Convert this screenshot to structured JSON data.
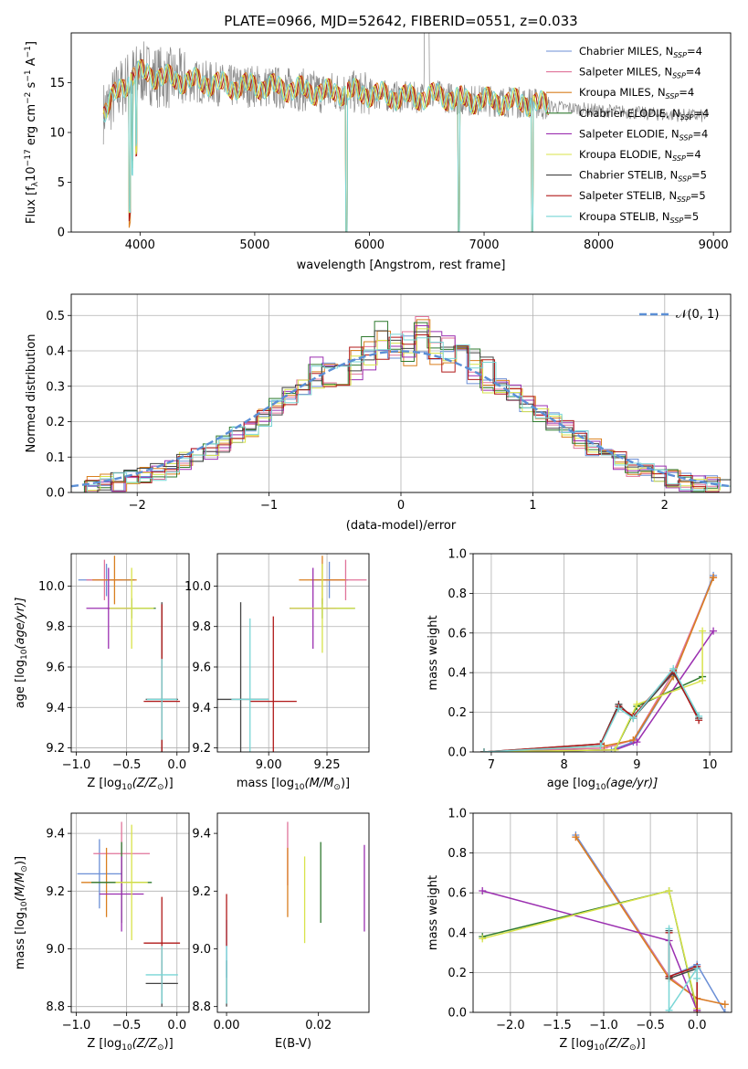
{
  "colors": {
    "chabrier_miles": "#6b8fd6",
    "salpeter_miles": "#e0739a",
    "kroupa_miles": "#d97f1f",
    "chabrier_elodie": "#2f7a2f",
    "salpeter_elodie": "#9b2fb0",
    "kroupa_elodie": "#d8e34a",
    "chabrier_stelib": "#444444",
    "salpeter_stelib": "#b01818",
    "kroupa_stelib": "#79d6d6",
    "normal": "#5b8fd6"
  },
  "legend_labels": [
    "Chabrier MILES, N",
    "Salpeter MILES, N",
    "Kroupa MILES, N",
    "Chabrier ELODIE, N",
    "Salpeter ELODIE, N",
    "Kroupa ELODIE, N",
    "Chabrier STELIB, N",
    "Salpeter STELIB, N",
    "Kroupa STELIB, N"
  ],
  "legend_sub": "SSP",
  "legend_counts": [
    "=4",
    "=4",
    "=4",
    "=4",
    "=4",
    "=4",
    "=5",
    "=5",
    "=5"
  ],
  "chart_data": [
    {
      "id": "spectrum",
      "type": "line",
      "title": "PLATE=0966, MJD=52642, FIBERID=0551, z=0.033",
      "xlabel": "wavelength [Angstrom, rest frame]",
      "ylabel": "Flux [f",
      "ylabel_parts": [
        "Flux [f",
        "λ",
        "10",
        "−17",
        " erg cm",
        "−2",
        " s",
        "−1",
        " A",
        "−1",
        "]"
      ],
      "xlim": [
        3400,
        9150
      ],
      "ylim": [
        0,
        20
      ],
      "xticks": [
        "4000",
        "5000",
        "6000",
        "7000",
        "8000",
        "9000"
      ],
      "yticks": [
        "0",
        "5",
        "10",
        "15"
      ],
      "grid": false,
      "legend_placement": "top-right",
      "continuum": {
        "x": [
          3650,
          3800,
          3950,
          4050,
          4200,
          4400,
          4600,
          4800,
          5000,
          5200,
          5400,
          5600,
          5800,
          6000,
          6200,
          6400,
          6600,
          6800,
          7000,
          7200,
          7400,
          7600,
          7800,
          8000,
          8200,
          8400,
          8600,
          8800,
          9000
        ],
        "y": [
          11.5,
          14.0,
          15.8,
          16.0,
          15.5,
          15.2,
          15.0,
          14.6,
          14.7,
          14.5,
          14.3,
          14.0,
          14.1,
          13.9,
          13.6,
          13.5,
          13.7,
          13.3,
          13.2,
          13.1,
          13.0,
          12.6,
          12.4,
          12.2,
          12.1,
          11.9,
          11.8,
          11.7,
          11.6
        ]
      }
    },
    {
      "id": "residual-hist",
      "type": "bar",
      "xlabel": "(data-model)/error",
      "ylabel": "Normed distribution",
      "xlim": [
        -2.5,
        2.5
      ],
      "ylim": [
        0,
        0.56
      ],
      "xticks": [
        "−2",
        "−1",
        "0",
        "1",
        "2"
      ],
      "yticks": [
        "0.0",
        "0.1",
        "0.2",
        "0.3",
        "0.4",
        "0.5"
      ],
      "grid": true,
      "legend_placement": "top-right",
      "legend_label": "𝒩(0, 1)",
      "bin_width": 0.1,
      "series_bins": [
        0.01,
        0.02,
        0.03,
        0.03,
        0.04,
        0.05,
        0.06,
        0.07,
        0.09,
        0.1,
        0.12,
        0.14,
        0.16,
        0.18,
        0.21,
        0.24,
        0.27,
        0.3,
        0.33,
        0.34,
        0.35,
        0.37,
        0.4,
        0.43,
        0.4,
        0.41,
        0.45,
        0.41,
        0.39,
        0.38,
        0.36,
        0.33,
        0.3,
        0.28,
        0.25,
        0.22,
        0.2,
        0.18,
        0.15,
        0.13,
        0.11,
        0.09,
        0.07,
        0.06,
        0.05,
        0.04,
        0.03,
        0.02,
        0.02,
        0.02
      ]
    },
    {
      "id": "age-vs-Z",
      "type": "scatter",
      "xlabel": "Z [log",
      "ylabel": "age  [log",
      "xlim": [
        -1.05,
        0.12
      ],
      "ylim": [
        9.18,
        10.16
      ],
      "xticks": [
        "−1.0",
        "−0.5",
        "0.0"
      ],
      "yticks": [
        "9.2",
        "9.4",
        "9.6",
        "9.8",
        "10.0"
      ],
      "grid": true,
      "points": [
        {
          "s": "chabrier_miles",
          "x": -0.7,
          "y": 10.03,
          "xe": 0.28,
          "ye": 0.08
        },
        {
          "s": "salpeter_miles",
          "x": -0.72,
          "y": 10.03,
          "xe": 0.18,
          "ye": 0.1
        },
        {
          "s": "kroupa_miles",
          "x": -0.62,
          "y": 10.03,
          "xe": 0.22,
          "ye": 0.12
        },
        {
          "s": "chabrier_elodie",
          "x": -0.45,
          "y": 9.89,
          "xe": 0.24,
          "ye": 0.05
        },
        {
          "s": "salpeter_elodie",
          "x": -0.68,
          "y": 9.89,
          "xe": 0.22,
          "ye": 0.2
        },
        {
          "s": "kroupa_elodie",
          "x": -0.45,
          "y": 9.89,
          "xe": 0.22,
          "ye": 0.2
        },
        {
          "s": "chabrier_stelib",
          "x": -0.15,
          "y": 9.44,
          "xe": 0.16,
          "ye": 0.48
        },
        {
          "s": "salpeter_stelib",
          "x": -0.15,
          "y": 9.43,
          "xe": 0.18,
          "ye": 0.48
        },
        {
          "s": "kroupa_stelib",
          "x": -0.15,
          "y": 9.44,
          "xe": 0.15,
          "ye": 0.2
        }
      ]
    },
    {
      "id": "age-vs-mass",
      "type": "scatter",
      "xlabel": "mass [log",
      "ylabel": "",
      "xlim": [
        8.78,
        9.43
      ],
      "ylim": [
        9.18,
        10.16
      ],
      "xticks": [
        "9.00",
        "9.25"
      ],
      "yticks": [
        "9.2",
        "9.4",
        "9.6",
        "9.8",
        "10.0"
      ],
      "grid": true,
      "points": [
        {
          "s": "chabrier_miles",
          "x": 9.26,
          "y": 10.03,
          "xe": 0.08,
          "ye": 0.09
        },
        {
          "s": "salpeter_miles",
          "x": 9.33,
          "y": 10.03,
          "xe": 0.09,
          "ye": 0.1
        },
        {
          "s": "kroupa_miles",
          "x": 9.23,
          "y": 10.03,
          "xe": 0.1,
          "ye": 0.12
        },
        {
          "s": "chabrier_elodie",
          "x": 9.23,
          "y": 9.89,
          "xe": 0.14,
          "ye": 0.05
        },
        {
          "s": "salpeter_elodie",
          "x": 9.19,
          "y": 9.89,
          "xe": 0.1,
          "ye": 0.2
        },
        {
          "s": "kroupa_elodie",
          "x": 9.23,
          "y": 9.89,
          "xe": 0.14,
          "ye": 0.22
        },
        {
          "s": "chabrier_stelib",
          "x": 8.88,
          "y": 9.44,
          "xe": 0.12,
          "ye": 0.48
        },
        {
          "s": "salpeter_stelib",
          "x": 9.02,
          "y": 9.43,
          "xe": 0.1,
          "ye": 0.42
        },
        {
          "s": "kroupa_stelib",
          "x": 8.92,
          "y": 9.44,
          "xe": 0.08,
          "ye": 0.4
        }
      ]
    },
    {
      "id": "mass-weight-vs-age",
      "type": "line",
      "xlabel": "age  [log",
      "ylabel": "mass weight",
      "xlim": [
        6.75,
        10.3
      ],
      "ylim": [
        0,
        1.0
      ],
      "xticks": [
        "7",
        "8",
        "9",
        "10"
      ],
      "yticks": [
        "0.0",
        "0.2",
        "0.4",
        "0.6",
        "0.8",
        "1.0"
      ],
      "grid": true,
      "series": [
        {
          "s": "chabrier_miles",
          "x": [
            6.9,
            8.65,
            8.95,
            9.5,
            10.05
          ],
          "y": [
            0.0,
            0.01,
            0.05,
            0.38,
            0.89
          ]
        },
        {
          "s": "salpeter_miles",
          "x": [
            6.9,
            8.55,
            8.95,
            9.5,
            10.05
          ],
          "y": [
            0.0,
            0.02,
            0.06,
            0.4,
            0.88
          ]
        },
        {
          "s": "kroupa_miles",
          "x": [
            6.9,
            8.55,
            8.95,
            9.5,
            10.05
          ],
          "y": [
            0.0,
            0.03,
            0.06,
            0.38,
            0.88
          ]
        },
        {
          "s": "chabrier_elodie",
          "x": [
            6.9,
            8.7,
            9.0,
            9.9
          ],
          "y": [
            0.0,
            0.01,
            0.23,
            0.38
          ]
        },
        {
          "s": "salpeter_elodie",
          "x": [
            6.9,
            8.7,
            9.0,
            10.05
          ],
          "y": [
            0.0,
            0.01,
            0.05,
            0.61
          ]
        },
        {
          "s": "kroupa_elodie",
          "x": [
            6.9,
            8.7,
            9.0,
            9.9,
            9.9
          ],
          "y": [
            0.0,
            0.01,
            0.24,
            0.36,
            0.61
          ]
        },
        {
          "s": "chabrier_stelib",
          "x": [
            6.9,
            8.5,
            8.75,
            8.95,
            9.5,
            9.85
          ],
          "y": [
            0.0,
            0.04,
            0.24,
            0.17,
            0.4,
            0.17
          ]
        },
        {
          "s": "salpeter_stelib",
          "x": [
            6.9,
            8.5,
            8.75,
            8.95,
            9.5,
            9.85
          ],
          "y": [
            0.0,
            0.04,
            0.23,
            0.18,
            0.41,
            0.16
          ]
        },
        {
          "s": "kroupa_stelib",
          "x": [
            6.9,
            8.5,
            8.75,
            8.95,
            9.5,
            9.85
          ],
          "y": [
            0.0,
            0.03,
            0.22,
            0.17,
            0.42,
            0.18
          ]
        }
      ]
    },
    {
      "id": "mass-vs-Z",
      "type": "scatter",
      "xlabel": "Z [log",
      "ylabel": "mass [log",
      "xlim": [
        -1.05,
        0.12
      ],
      "ylim": [
        8.78,
        9.47
      ],
      "xticks": [
        "−1.0",
        "−0.5",
        "0.0"
      ],
      "yticks": [
        "8.8",
        "9.0",
        "9.2",
        "9.4"
      ],
      "grid": true,
      "points": [
        {
          "s": "chabrier_miles",
          "x": -0.77,
          "y": 9.26,
          "xe": 0.22,
          "ye": 0.12
        },
        {
          "s": "salpeter_miles",
          "x": -0.55,
          "y": 9.33,
          "xe": 0.28,
          "ye": 0.11
        },
        {
          "s": "kroupa_miles",
          "x": -0.7,
          "y": 9.23,
          "xe": 0.25,
          "ye": 0.12
        },
        {
          "s": "chabrier_elodie",
          "x": -0.55,
          "y": 9.23,
          "xe": 0.3,
          "ye": 0.14
        },
        {
          "s": "salpeter_elodie",
          "x": -0.55,
          "y": 9.19,
          "xe": 0.22,
          "ye": 0.13
        },
        {
          "s": "kroupa_elodie",
          "x": -0.45,
          "y": 9.23,
          "xe": 0.16,
          "ye": 0.2
        },
        {
          "s": "chabrier_stelib",
          "x": -0.15,
          "y": 8.88,
          "xe": 0.16,
          "ye": 0.08
        },
        {
          "s": "salpeter_stelib",
          "x": -0.15,
          "y": 9.02,
          "xe": 0.18,
          "ye": 0.16
        },
        {
          "s": "kroupa_stelib",
          "x": -0.15,
          "y": 8.91,
          "xe": 0.16,
          "ye": 0.1
        }
      ]
    },
    {
      "id": "mass-vs-ebv",
      "type": "scatter",
      "xlabel": "E(B-V)",
      "ylabel": "",
      "xlim": [
        -0.002,
        0.031
      ],
      "ylim": [
        8.78,
        9.47
      ],
      "xticks": [
        "0.00",
        "0.02"
      ],
      "yticks": [
        "8.8",
        "9.0",
        "9.2",
        "9.4"
      ],
      "grid": false,
      "points": [
        {
          "s": "chabrier_miles",
          "x": 0.0,
          "y": 9.0,
          "xe": 0,
          "ye": 0.1
        },
        {
          "s": "salpeter_miles",
          "x": 0.0133,
          "y": 9.33,
          "xe": 0,
          "ye": 0.11
        },
        {
          "s": "kroupa_miles",
          "x": 0.0133,
          "y": 9.23,
          "xe": 0,
          "ye": 0.12
        },
        {
          "s": "chabrier_elodie",
          "x": 0.0205,
          "y": 9.23,
          "xe": 0,
          "ye": 0.14
        },
        {
          "s": "salpeter_elodie",
          "x": 0.03,
          "y": 9.21,
          "xe": 0,
          "ye": 0.15
        },
        {
          "s": "kroupa_elodie",
          "x": 0.017,
          "y": 9.17,
          "xe": 0,
          "ye": 0.15
        },
        {
          "s": "chabrier_stelib",
          "x": 0.0,
          "y": 8.88,
          "xe": 0,
          "ye": 0.08
        },
        {
          "s": "salpeter_stelib",
          "x": 0.0,
          "y": 9.1,
          "xe": 0,
          "ye": 0.09
        },
        {
          "s": "kroupa_stelib",
          "x": 0.0,
          "y": 8.91,
          "xe": 0,
          "ye": 0.1
        }
      ]
    },
    {
      "id": "mass-weight-vs-Z",
      "type": "line",
      "xlabel": "Z [log",
      "ylabel": "mass weight",
      "xlim": [
        -2.4,
        0.37
      ],
      "ylim": [
        0,
        1.0
      ],
      "xticks": [
        "−2.0",
        "−1.5",
        "−1.0",
        "−0.5",
        "0.0"
      ],
      "yticks": [
        "0.0",
        "0.2",
        "0.4",
        "0.6",
        "0.8",
        "1.0"
      ],
      "grid": true,
      "series": [
        {
          "s": "chabrier_miles",
          "x": [
            -1.3,
            -0.3,
            0.0,
            0.3
          ],
          "y": [
            0.89,
            0.18,
            0.24,
            0.0
          ]
        },
        {
          "s": "salpeter_miles",
          "x": [
            -1.3,
            -0.3,
            0.0,
            0.3
          ],
          "y": [
            0.88,
            0.18,
            0.07,
            0.04
          ]
        },
        {
          "s": "kroupa_miles",
          "x": [
            -1.3,
            -0.3,
            0.0,
            0.3
          ],
          "y": [
            0.88,
            0.17,
            0.07,
            0.04
          ]
        },
        {
          "s": "chabrier_elodie",
          "x": [
            -2.3,
            -0.3,
            0.0
          ],
          "y": [
            0.38,
            0.61,
            0.01
          ]
        },
        {
          "s": "salpeter_elodie",
          "x": [
            -2.3,
            -0.3,
            0.0
          ],
          "y": [
            0.61,
            0.36,
            0.01
          ]
        },
        {
          "s": "kroupa_elodie",
          "x": [
            -2.3,
            -0.3,
            0.0
          ],
          "y": [
            0.37,
            0.61,
            0.02
          ]
        },
        {
          "s": "chabrier_stelib",
          "x": [
            -0.3,
            -0.3,
            0.0,
            0.0
          ],
          "y": [
            0.41,
            0.17,
            0.22,
            0.0
          ]
        },
        {
          "s": "salpeter_stelib",
          "x": [
            -0.3,
            -0.3,
            0.0,
            0.0
          ],
          "y": [
            0.4,
            0.18,
            0.23,
            0.0
          ]
        },
        {
          "s": "kroupa_stelib",
          "x": [
            -0.3,
            -0.3,
            0.0,
            0.0
          ],
          "y": [
            0.42,
            0.01,
            0.22,
            0.17
          ]
        }
      ]
    }
  ]
}
